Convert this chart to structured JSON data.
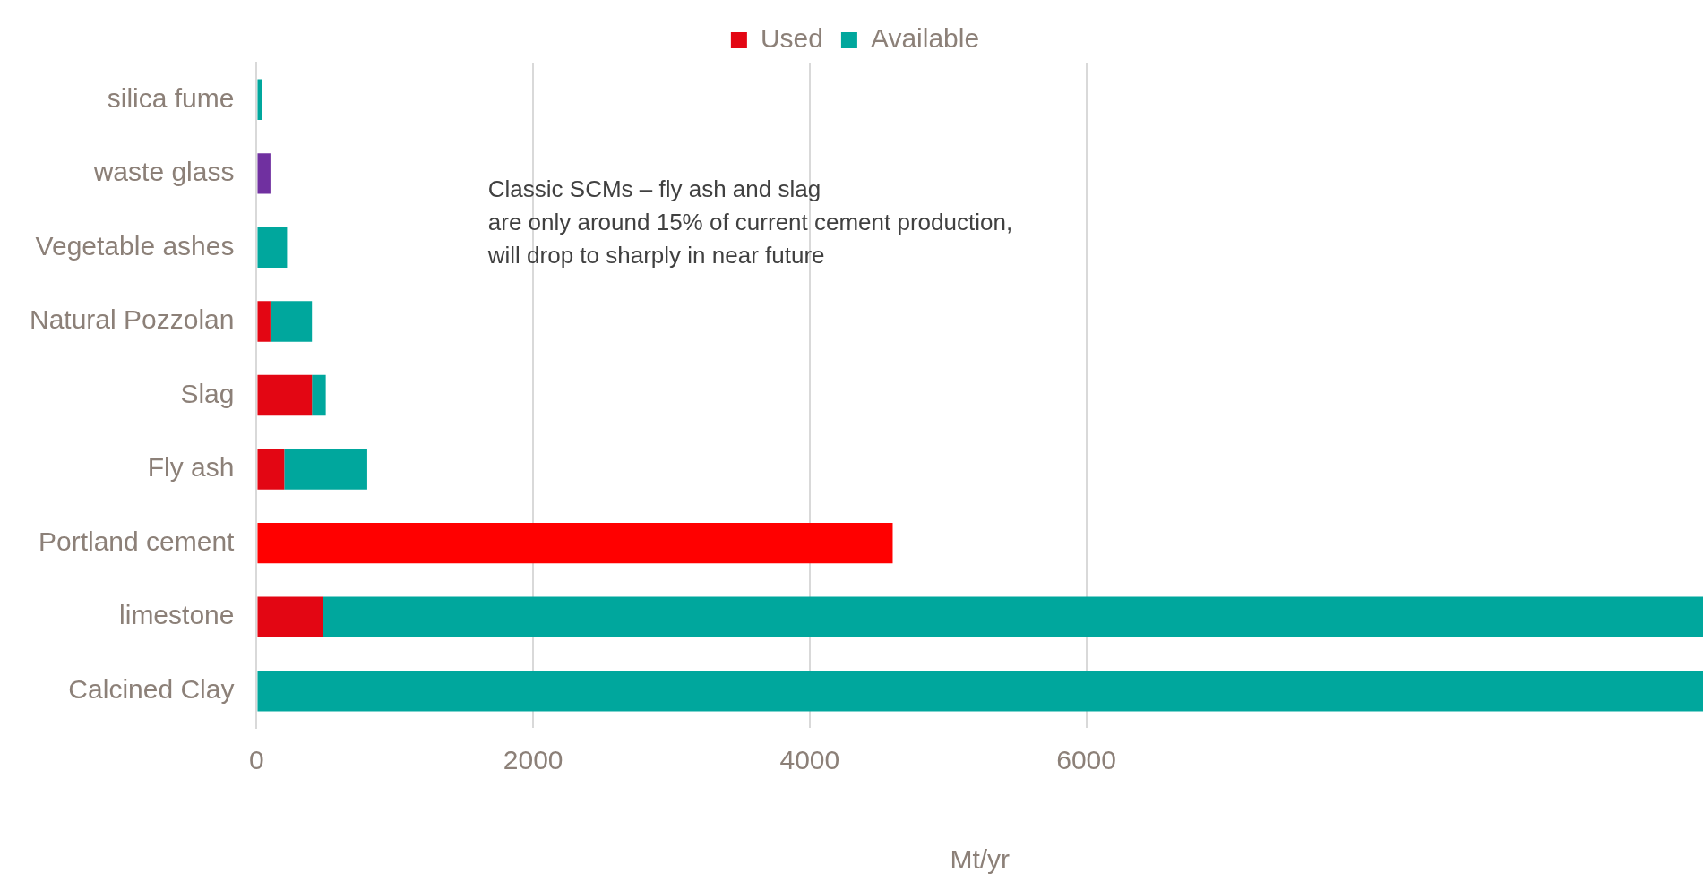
{
  "chart_data": {
    "type": "bar",
    "orientation": "horizontal",
    "stacked": true,
    "categories": [
      "silica fume",
      "waste glass",
      "Vegetable ashes",
      "Natural Pozzolan",
      "Slag",
      "Fly ash",
      "Portland cement",
      "limestone",
      "Calcined Clay"
    ],
    "series": [
      {
        "name": "Used",
        "color": "#e30613",
        "colors": [
          "#e30613",
          "#e30613",
          "#e30613",
          "#e30613",
          "#e30613",
          "#e30613",
          "#ff0000",
          "#e30613",
          "#e30613"
        ],
        "values": [
          null,
          null,
          null,
          100,
          400,
          200,
          4600,
          480,
          null
        ]
      },
      {
        "name": "Available",
        "color": "#00a79d",
        "colors": [
          "#00a79d",
          "#7030a0",
          "#00a79d",
          "#00a79d",
          "#00a79d",
          "#00a79d",
          "#00a79d",
          "#00a79d",
          "#00a79d"
        ],
        "values": [
          40,
          100,
          220,
          300,
          100,
          600,
          null,
          9980,
          10460
        ]
      }
    ],
    "xlabel": "Mt/yr",
    "xlim": [
      0,
      10460
    ],
    "xticks": [
      0,
      2000,
      4000,
      6000
    ],
    "grid": "x",
    "legend": "top",
    "annotations": [
      "Classic SCMs – fly ash and slag\nare only around 15% of current cement production,\nwill drop to sharply in near future"
    ]
  }
}
